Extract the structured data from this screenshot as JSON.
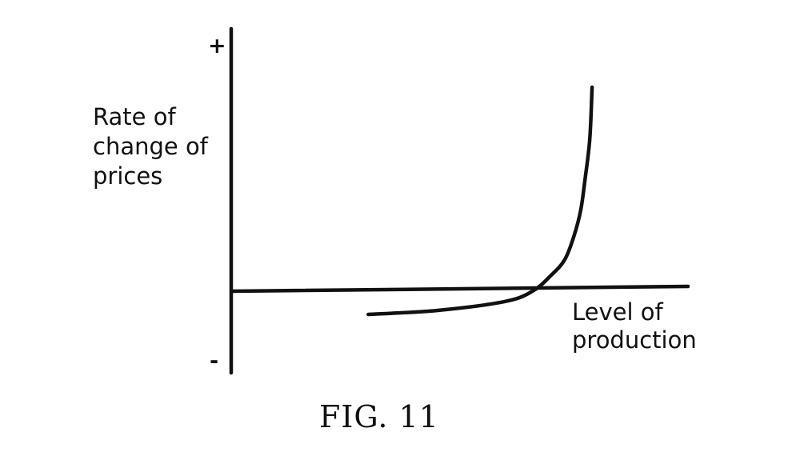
{
  "chart_data": {
    "type": "line",
    "ylabel_lines": [
      "Rate of",
      "change of",
      "prices"
    ],
    "xlabel_lines": [
      "Level of",
      "production"
    ],
    "y_positive_mark": "+",
    "y_negative_mark": "-",
    "caption": "FIG. 11",
    "series": [
      {
        "x": [
          0.3,
          0.45,
          0.6,
          0.66,
          0.7,
          0.73,
          0.75,
          0.765,
          0.775,
          0.785,
          0.79
        ],
        "y": [
          -0.3,
          -0.27,
          -0.2,
          -0.12,
          0.0,
          0.12,
          0.3,
          0.5,
          0.75,
          1.05,
          1.45
        ]
      }
    ],
    "xlim": [
      0,
      1
    ],
    "ylim": [
      -0.75,
      1.9
    ],
    "grid": false
  }
}
